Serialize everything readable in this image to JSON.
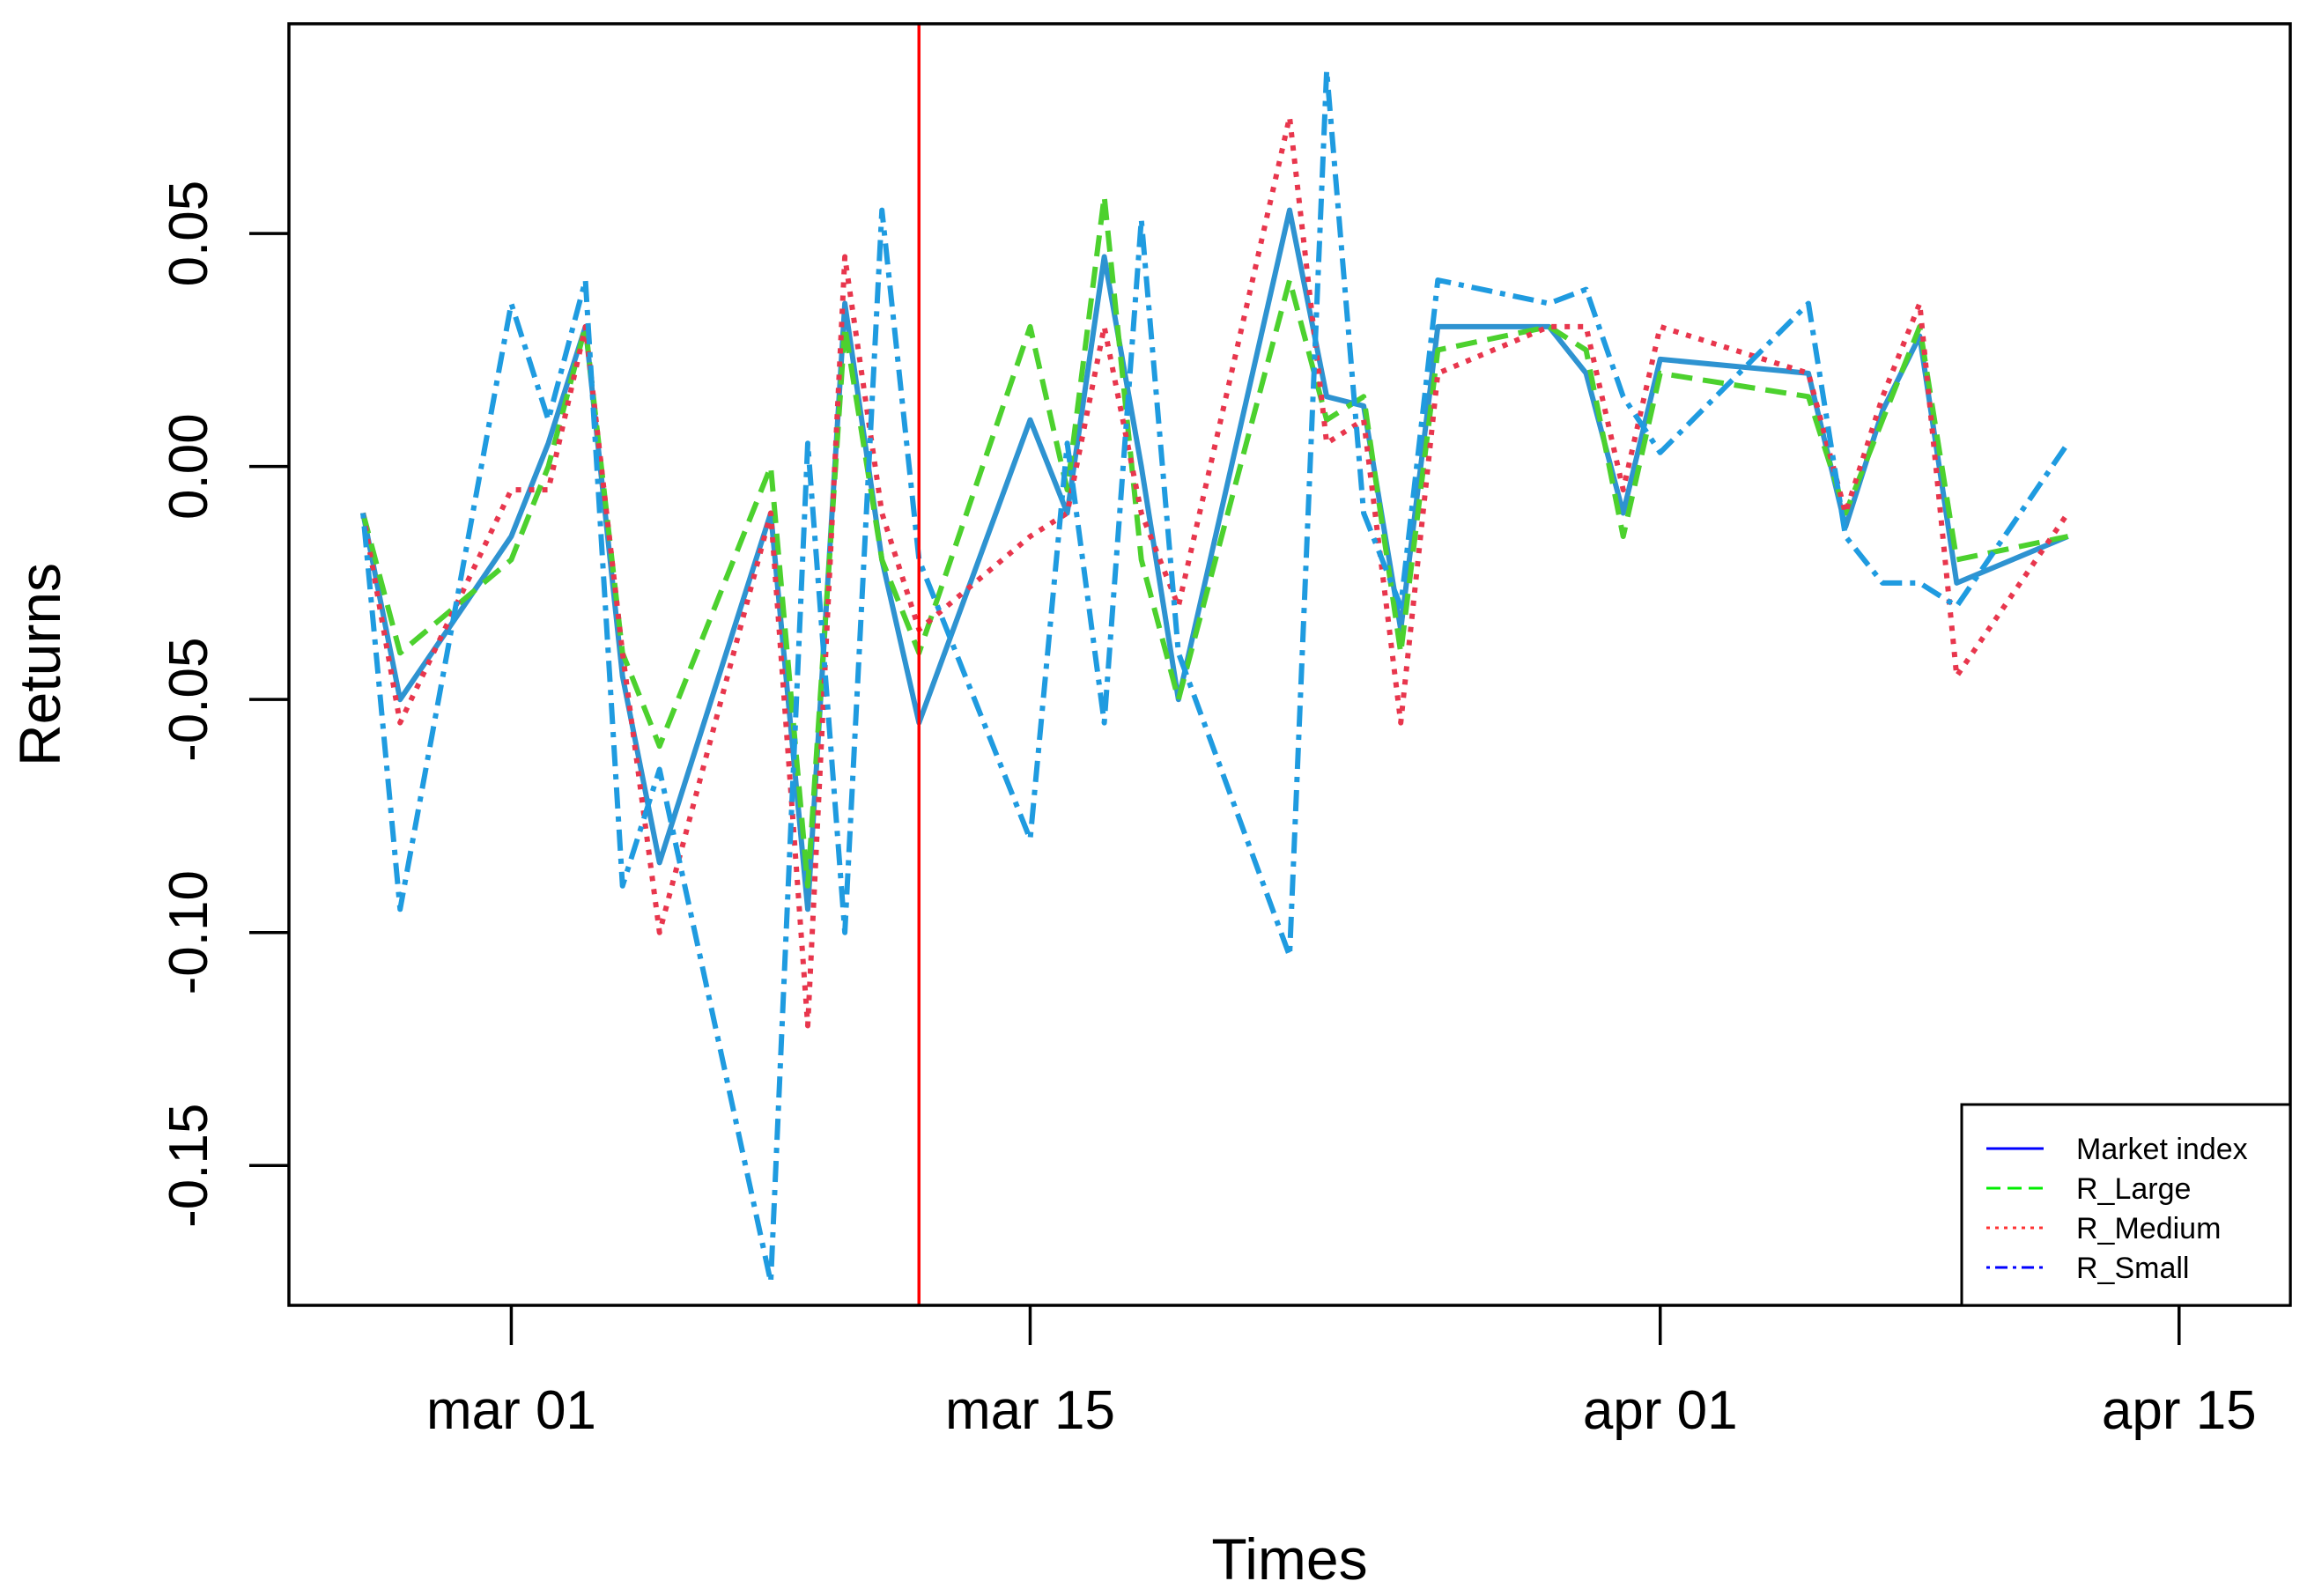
{
  "chart_data": {
    "type": "line",
    "title": "",
    "xlabel": "Times",
    "ylabel": "Returns",
    "xlim": [
      "2021-02-23",
      "2021-04-18"
    ],
    "ylim": [
      -0.18,
      0.095
    ],
    "x_ticks": [
      {
        "date": "2021-03-01",
        "label": "mar 01"
      },
      {
        "date": "2021-03-15",
        "label": "mar 15"
      },
      {
        "date": "2021-04-01",
        "label": "apr 01"
      },
      {
        "date": "2021-04-15",
        "label": "apr 15"
      }
    ],
    "y_ticks": [
      {
        "value": 0.05,
        "label": "0.05"
      },
      {
        "value": 0.0,
        "label": "0.00"
      },
      {
        "value": -0.05,
        "label": "-0.05"
      },
      {
        "value": -0.1,
        "label": "-0.10"
      },
      {
        "value": -0.15,
        "label": "-0.15"
      }
    ],
    "vline": {
      "date": "2021-03-12",
      "color": "#ff0000"
    },
    "x": [
      "2021-02-25",
      "2021-02-26",
      "2021-03-01",
      "2021-03-02",
      "2021-03-03",
      "2021-03-04",
      "2021-03-05",
      "2021-03-08",
      "2021-03-09",
      "2021-03-10",
      "2021-03-11",
      "2021-03-12",
      "2021-03-15",
      "2021-03-16",
      "2021-03-17",
      "2021-03-18",
      "2021-03-19",
      "2021-03-22",
      "2021-03-23",
      "2021-03-24",
      "2021-03-25",
      "2021-03-26",
      "2021-03-29",
      "2021-03-30",
      "2021-03-31",
      "2021-04-01",
      "2021-04-05",
      "2021-04-06",
      "2021-04-07",
      "2021-04-08",
      "2021-04-09",
      "2021-04-12",
      "2021-04-13",
      "2021-04-14",
      "2021-04-15",
      "2021-04-16"
    ],
    "series": [
      {
        "name": "Market index",
        "color": "#2e93d1",
        "dash": "solid",
        "values": [
          -0.01,
          -0.05,
          -0.015,
          0.005,
          0.03,
          -0.045,
          -0.085,
          -0.01,
          -0.095,
          0.035,
          -0.02,
          -0.055,
          0.01,
          -0.01,
          0.045,
          0.0,
          -0.05,
          0.055,
          0.015,
          0.013,
          -0.035,
          0.03,
          0.03,
          0.02,
          -0.01,
          0.023,
          0.02,
          -0.013,
          0.012,
          0.028,
          -0.025,
          -0.015,
          null,
          null,
          null,
          null
        ]
      },
      {
        "name": "R_Large",
        "color": "#4cd12e",
        "dash": "dashed",
        "values": [
          -0.01,
          -0.04,
          -0.02,
          0.0,
          0.03,
          -0.04,
          -0.06,
          0.0,
          -0.09,
          0.03,
          -0.02,
          -0.04,
          0.03,
          -0.005,
          0.058,
          -0.02,
          -0.05,
          0.04,
          0.01,
          0.015,
          -0.04,
          0.025,
          0.03,
          0.025,
          -0.015,
          0.02,
          0.015,
          -0.01,
          0.01,
          0.03,
          -0.02,
          -0.015,
          null,
          null,
          null,
          null
        ]
      },
      {
        "name": "R_Medium",
        "color": "#e8364d",
        "dash": "dotted",
        "values": [
          -0.01,
          -0.055,
          -0.005,
          -0.005,
          0.03,
          -0.04,
          -0.1,
          -0.01,
          -0.12,
          0.045,
          -0.01,
          -0.035,
          -0.015,
          -0.01,
          0.03,
          -0.01,
          -0.03,
          0.075,
          0.005,
          0.01,
          -0.055,
          0.02,
          0.03,
          0.03,
          -0.005,
          0.03,
          0.02,
          -0.01,
          0.015,
          0.035,
          -0.045,
          -0.01,
          null,
          null,
          null,
          null
        ]
      },
      {
        "name": "R_Small",
        "color": "#1f9be0",
        "dash": "dotdash",
        "values": [
          -0.01,
          -0.095,
          0.035,
          0.01,
          0.04,
          -0.09,
          -0.065,
          -0.175,
          0.005,
          -0.1,
          0.055,
          -0.02,
          -0.08,
          0.005,
          -0.055,
          0.053,
          -0.04,
          -0.105,
          0.085,
          -0.01,
          -0.03,
          0.04,
          0.035,
          0.038,
          0.015,
          0.003,
          0.035,
          -0.015,
          -0.025,
          -0.025,
          -0.03,
          0.005,
          null,
          null,
          null,
          null
        ]
      }
    ],
    "legend": {
      "position": "bottom-right"
    }
  }
}
